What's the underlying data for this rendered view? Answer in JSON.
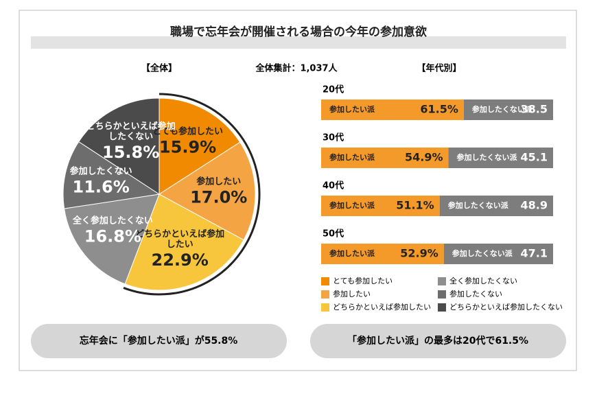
{
  "title": "職場で忘年会が開催される場合の今年の参加意欲",
  "chart_data": [
    {
      "type": "pie",
      "subtitle": "【全体】",
      "note": "全体集計：1,037人",
      "categories": [
        "とても参加したい",
        "参加したい",
        "どちらかといえば参加したい",
        "全く参加したくない",
        "参加したくない",
        "どちらかといえば参加したくない"
      ],
      "values": [
        15.9,
        17.0,
        22.9,
        16.8,
        11.6,
        15.8
      ],
      "value_labels": [
        "15.9%",
        "17.0%",
        "22.9%",
        "16.8%",
        "11.6%",
        "15.8%"
      ],
      "colors": [
        "#f28a00",
        "#f5a443",
        "#f8c63c",
        "#8e8e8e",
        "#6d6d6d",
        "#4b4b4b"
      ]
    },
    {
      "type": "stacked-barh",
      "subtitle": "【年代別】",
      "categories": [
        "20代",
        "30代",
        "40代",
        "50代"
      ],
      "xlim": [
        0,
        100
      ],
      "series": [
        {
          "name": "参加したい派",
          "color": "#f39a2a",
          "values": [
            61.5,
            54.9,
            51.1,
            52.9
          ],
          "value_labels": [
            "61.5%",
            "54.9%",
            "51.1%",
            "52.9%"
          ]
        },
        {
          "name": "参加したくない派",
          "color": "#7d7d7d",
          "values": [
            38.5,
            45.1,
            48.9,
            47.1
          ]
        }
      ]
    }
  ],
  "footer": [
    "忘年会に「参加したい派」が55.8%",
    "「参加したい派」の最多は20代で61.5%"
  ]
}
